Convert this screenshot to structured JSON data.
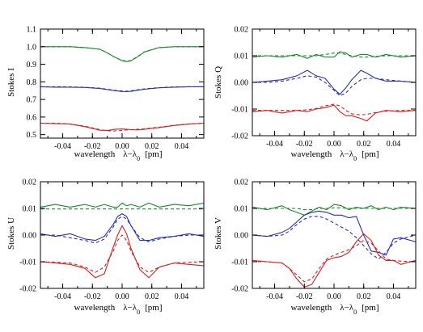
{
  "chart_data": [
    {
      "type": "line",
      "panel": "stokes-i",
      "ylabel": "Stokes I",
      "xlabel": "wavelength",
      "xlabel_math": "λ−λ",
      "xlabel_subscript": "0",
      "xlabel_unit": "[pm]",
      "xlim": [
        -0.055,
        0.055
      ],
      "ylim": [
        0.48,
        1.1
      ],
      "xticks": [
        "-0.04",
        "-0.02",
        "0.00",
        "0.02",
        "0.04"
      ],
      "xtick_values": [
        -0.04,
        -0.02,
        0.0,
        0.02,
        0.04
      ],
      "yticks": [
        "0.5",
        "0.6",
        "0.7",
        "0.8",
        "0.9",
        "1.0",
        "1.1"
      ],
      "ytick_values": [
        0.5,
        0.6,
        0.7,
        0.8,
        0.9,
        1.0,
        1.1
      ],
      "grid": false,
      "x": [
        -0.055,
        -0.045,
        -0.035,
        -0.025,
        -0.015,
        -0.01,
        -0.005,
        0.0,
        0.003,
        0.006,
        0.01,
        0.015,
        0.025,
        0.035,
        0.045,
        0.055
      ],
      "series": [
        {
          "color": "#1a8a2a",
          "style": "solid",
          "values": [
            1.0,
            1.0,
            1.0,
            0.995,
            0.985,
            0.965,
            0.94,
            0.92,
            0.915,
            0.92,
            0.94,
            0.97,
            0.995,
            1.0,
            1.0,
            1.0
          ]
        },
        {
          "color": "#1a8a2a",
          "style": "dashed",
          "values": [
            1.0,
            1.0,
            1.0,
            0.995,
            0.985,
            0.965,
            0.94,
            0.922,
            0.918,
            0.922,
            0.942,
            0.97,
            0.995,
            1.0,
            1.0,
            1.0
          ]
        },
        {
          "color": "#2a2fb0",
          "style": "solid",
          "values": [
            0.772,
            0.77,
            0.77,
            0.768,
            0.762,
            0.756,
            0.75,
            0.745,
            0.744,
            0.746,
            0.752,
            0.758,
            0.766,
            0.77,
            0.772,
            0.772
          ]
        },
        {
          "color": "#2a2fb0",
          "style": "dashed",
          "values": [
            0.772,
            0.772,
            0.771,
            0.769,
            0.764,
            0.758,
            0.752,
            0.748,
            0.747,
            0.749,
            0.754,
            0.76,
            0.767,
            0.771,
            0.772,
            0.772
          ]
        },
        {
          "color": "#d42020",
          "style": "solid",
          "values": [
            0.565,
            0.562,
            0.56,
            0.545,
            0.525,
            0.523,
            0.53,
            0.532,
            0.53,
            0.528,
            0.527,
            0.53,
            0.54,
            0.552,
            0.56,
            0.565
          ]
        },
        {
          "color": "#d42020",
          "style": "dashed",
          "values": [
            0.565,
            0.565,
            0.56,
            0.548,
            0.528,
            0.522,
            0.521,
            0.524,
            0.527,
            0.528,
            0.53,
            0.533,
            0.542,
            0.553,
            0.56,
            0.565
          ]
        }
      ]
    },
    {
      "type": "line",
      "panel": "stokes-q",
      "ylabel": "Stokes Q",
      "xlabel": "wavelength",
      "xlabel_math": "λ−λ",
      "xlabel_subscript": "0",
      "xlabel_unit": "[pm]",
      "xlim": [
        -0.055,
        0.055
      ],
      "ylim": [
        -0.02,
        0.02
      ],
      "xticks": [
        "-0.04",
        "-0.02",
        "0.00",
        "0.02",
        "0.04"
      ],
      "xtick_values": [
        -0.04,
        -0.02,
        0.0,
        0.02,
        0.04
      ],
      "yticks": [
        "-0.02",
        "-0.01",
        "0.00",
        "0.01",
        "0.02"
      ],
      "ytick_values": [
        -0.02,
        -0.01,
        0.0,
        0.01,
        0.02
      ],
      "grid": false,
      "x": [
        -0.055,
        -0.045,
        -0.035,
        -0.025,
        -0.018,
        -0.012,
        -0.006,
        0.0,
        0.004,
        0.008,
        0.012,
        0.018,
        0.022,
        0.028,
        0.035,
        0.045,
        0.055
      ],
      "series": [
        {
          "color": "#1a8a2a",
          "style": "solid",
          "values": [
            0.0095,
            0.01,
            0.0095,
            0.0105,
            0.009,
            0.0105,
            0.0095,
            0.0095,
            0.0115,
            0.011,
            0.0095,
            0.0105,
            0.0105,
            0.0095,
            0.0105,
            0.0095,
            0.01
          ]
        },
        {
          "color": "#1a8a2a",
          "style": "dashed",
          "values": [
            0.01,
            0.01,
            0.01,
            0.01,
            0.01,
            0.01,
            0.0105,
            0.011,
            0.011,
            0.0105,
            0.01,
            0.0095,
            0.0095,
            0.0098,
            0.01,
            0.01,
            0.01
          ]
        },
        {
          "color": "#2a2fb0",
          "style": "solid",
          "values": [
            0.0,
            0.0005,
            0.001,
            0.0025,
            0.0045,
            0.0025,
            0.0015,
            -0.0025,
            -0.0045,
            -0.002,
            0.001,
            0.0045,
            0.0035,
            0.0015,
            0.0005,
            0.0005,
            0.0
          ]
        },
        {
          "color": "#2a2fb0",
          "style": "dashed",
          "values": [
            0.0,
            0.0,
            0.0005,
            0.0015,
            0.0025,
            0.002,
            0.0,
            -0.003,
            -0.005,
            -0.004,
            -0.0015,
            0.001,
            0.0015,
            0.0015,
            0.001,
            0.0005,
            0.0
          ]
        },
        {
          "color": "#d42020",
          "style": "solid",
          "values": [
            -0.011,
            -0.0105,
            -0.0115,
            -0.0105,
            -0.011,
            -0.01,
            -0.0095,
            -0.0085,
            -0.011,
            -0.0125,
            -0.0125,
            -0.0135,
            -0.0145,
            -0.0115,
            -0.0105,
            -0.011,
            -0.0105
          ]
        },
        {
          "color": "#d42020",
          "style": "dashed",
          "values": [
            -0.0105,
            -0.0105,
            -0.0105,
            -0.0105,
            -0.0103,
            -0.0098,
            -0.0088,
            -0.0082,
            -0.0088,
            -0.0105,
            -0.0118,
            -0.0122,
            -0.012,
            -0.0113,
            -0.0108,
            -0.0105,
            -0.0105
          ]
        }
      ]
    },
    {
      "type": "line",
      "panel": "stokes-u",
      "ylabel": "Stokes U",
      "xlabel": "wavelength",
      "xlabel_math": "λ−λ",
      "xlabel_subscript": "0",
      "xlabel_unit": "[pm]",
      "xlim": [
        -0.055,
        0.055
      ],
      "ylim": [
        -0.02,
        0.02
      ],
      "xticks": [
        "-0.04",
        "-0.02",
        "0.00",
        "0.02",
        "0.04"
      ],
      "xtick_values": [
        -0.04,
        -0.02,
        0.0,
        0.02,
        0.04
      ],
      "yticks": [
        "-0.02",
        "-0.01",
        "0.00",
        "0.01",
        "0.02"
      ],
      "ytick_values": [
        -0.02,
        -0.01,
        0.0,
        0.01,
        0.02
      ],
      "grid": false,
      "x": [
        -0.055,
        -0.045,
        -0.035,
        -0.025,
        -0.018,
        -0.012,
        -0.006,
        -0.003,
        0.0,
        0.003,
        0.006,
        0.012,
        0.018,
        0.025,
        0.035,
        0.045,
        0.055
      ],
      "series": [
        {
          "color": "#1a8a2a",
          "style": "solid",
          "values": [
            0.0105,
            0.0115,
            0.0105,
            0.0115,
            0.0105,
            0.0115,
            0.0105,
            0.0105,
            0.012,
            0.011,
            0.0115,
            0.0105,
            0.012,
            0.0105,
            0.0115,
            0.011,
            0.012
          ]
        },
        {
          "color": "#1a8a2a",
          "style": "dashed",
          "values": [
            0.0098,
            0.0098,
            0.0098,
            0.0098,
            0.0098,
            0.0098,
            0.0098,
            0.0098,
            0.0098,
            0.0098,
            0.0098,
            0.0098,
            0.0098,
            0.0098,
            0.0098,
            0.0098,
            0.0098
          ]
        },
        {
          "color": "#2a2fb0",
          "style": "solid",
          "values": [
            0.0005,
            -0.0005,
            0.0005,
            -0.0015,
            -0.002,
            -0.0005,
            0.004,
            0.007,
            0.008,
            0.007,
            0.0035,
            -0.002,
            -0.002,
            -0.001,
            -0.0005,
            0.0005,
            -0.0005
          ]
        },
        {
          "color": "#2a2fb0",
          "style": "dashed",
          "values": [
            0.0,
            0.0,
            -0.001,
            -0.002,
            -0.003,
            -0.0015,
            0.003,
            0.006,
            0.007,
            0.006,
            0.0035,
            -0.001,
            -0.0025,
            -0.0015,
            -0.0005,
            0.0,
            0.0
          ]
        },
        {
          "color": "#d42020",
          "style": "solid",
          "values": [
            -0.01,
            -0.0105,
            -0.011,
            -0.0125,
            -0.016,
            -0.0145,
            -0.0045,
            0.0,
            0.0035,
            0.0005,
            -0.005,
            -0.013,
            -0.016,
            -0.012,
            -0.0105,
            -0.011,
            -0.0115
          ]
        },
        {
          "color": "#d42020",
          "style": "dashed",
          "values": [
            -0.01,
            -0.0102,
            -0.0105,
            -0.012,
            -0.014,
            -0.012,
            -0.006,
            -0.002,
            0.0,
            -0.002,
            -0.006,
            -0.012,
            -0.014,
            -0.012,
            -0.0105,
            -0.0102,
            -0.01
          ]
        }
      ]
    },
    {
      "type": "line",
      "panel": "stokes-v",
      "ylabel": "Stokes V",
      "xlabel": "wavelength",
      "xlabel_math": "λ−λ",
      "xlabel_subscript": "0",
      "xlabel_unit": "[pm]",
      "xlim": [
        -0.055,
        0.055
      ],
      "ylim": [
        -0.02,
        0.02
      ],
      "xticks": [
        "-0.04",
        "-0.02",
        "0.00",
        "0.02",
        "0.04"
      ],
      "xtick_values": [
        -0.04,
        -0.02,
        0.0,
        0.02,
        0.04
      ],
      "yticks": [
        "-0.02",
        "-0.01",
        "0.00",
        "0.01",
        "0.02"
      ],
      "ytick_values": [
        -0.02,
        -0.01,
        0.0,
        0.01,
        0.02
      ],
      "grid": false,
      "x": [
        -0.055,
        -0.045,
        -0.035,
        -0.03,
        -0.025,
        -0.02,
        -0.015,
        -0.01,
        -0.005,
        0.0,
        0.005,
        0.01,
        0.015,
        0.02,
        0.025,
        0.03,
        0.035,
        0.04,
        0.045,
        0.055
      ],
      "series": [
        {
          "color": "#1a8a2a",
          "style": "solid",
          "values": [
            0.0105,
            0.0095,
            0.011,
            0.0095,
            0.0085,
            0.0075,
            0.009,
            0.0105,
            0.0095,
            0.0115,
            0.011,
            0.0095,
            0.0105,
            0.01,
            0.011,
            0.0095,
            0.0105,
            0.0095,
            0.0105,
            0.01
          ]
        },
        {
          "color": "#1a8a2a",
          "style": "dashed",
          "values": [
            0.01,
            0.01,
            0.01,
            0.01,
            0.01,
            0.0095,
            0.0095,
            0.01,
            0.01,
            0.0102,
            0.0102,
            0.01,
            0.01,
            0.01,
            0.01,
            0.01,
            0.01,
            0.01,
            0.01,
            0.01
          ]
        },
        {
          "color": "#2a2fb0",
          "style": "solid",
          "values": [
            0.0,
            -0.0005,
            0.001,
            0.0025,
            0.005,
            0.0075,
            0.0085,
            0.009,
            0.0085,
            0.0075,
            0.0075,
            0.0065,
            0.007,
            0.0,
            -0.006,
            -0.0065,
            -0.0075,
            -0.0015,
            -0.001,
            -0.0025
          ]
        },
        {
          "color": "#2a2fb0",
          "style": "dashed",
          "values": [
            0.0,
            -0.0005,
            0.0,
            0.0015,
            0.004,
            0.006,
            0.007,
            0.007,
            0.006,
            0.0045,
            0.003,
            0.0015,
            -0.001,
            -0.004,
            -0.007,
            -0.009,
            -0.0065,
            -0.003,
            -0.0015,
            0.0
          ]
        },
        {
          "color": "#d42020",
          "style": "solid",
          "values": [
            -0.0095,
            -0.01,
            -0.0105,
            -0.0125,
            -0.0165,
            -0.0195,
            -0.0185,
            -0.014,
            -0.0095,
            -0.0085,
            -0.008,
            -0.0065,
            -0.0025,
            0.0005,
            -0.002,
            -0.0075,
            -0.0095,
            -0.0095,
            -0.011,
            -0.0095
          ]
        },
        {
          "color": "#d42020",
          "style": "dashed",
          "values": [
            -0.01,
            -0.01,
            -0.0105,
            -0.0125,
            -0.015,
            -0.0175,
            -0.0165,
            -0.0125,
            -0.009,
            -0.0075,
            -0.0065,
            -0.0055,
            -0.004,
            -0.002,
            -0.003,
            -0.006,
            -0.009,
            -0.0095,
            -0.0098,
            -0.01
          ]
        }
      ]
    }
  ]
}
